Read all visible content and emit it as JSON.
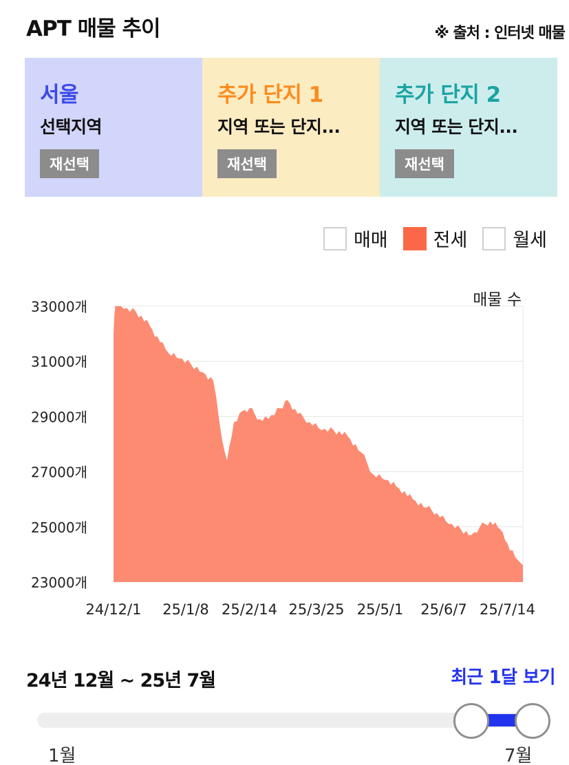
{
  "header": {
    "title": "APT 매물 추이",
    "source": "※ 출처 : 인터넷 매물"
  },
  "panels": [
    {
      "name": "서울",
      "sub": "선택지역",
      "button": "재선택",
      "bg": "#d2d6fb",
      "color": "#3b49ea"
    },
    {
      "name": "추가 단지 1",
      "sub": "지역 또는 단지...",
      "button": "재선택",
      "bg": "#fcecc2",
      "color": "#fc8b1c"
    },
    {
      "name": "추가 단지 2",
      "sub": "지역 또는 단지...",
      "button": "재선택",
      "bg": "#cdeded",
      "color": "#1aa3a3"
    }
  ],
  "legend": [
    {
      "label": "매매",
      "checked": false
    },
    {
      "label": "전세",
      "checked": true
    },
    {
      "label": "월세",
      "checked": false
    }
  ],
  "chart_data": {
    "type": "area",
    "series": [
      {
        "name": "전세",
        "color": "#fc8b72"
      }
    ],
    "ylabel": "매물 수",
    "ylim": [
      23000,
      33000
    ],
    "yticks": [
      {
        "value": 23000,
        "label": "23000개"
      },
      {
        "value": 25000,
        "label": "25000개"
      },
      {
        "value": 27000,
        "label": "27000개"
      },
      {
        "value": 29000,
        "label": "29000개"
      },
      {
        "value": 31000,
        "label": "31000개"
      },
      {
        "value": 33000,
        "label": "33000개"
      }
    ],
    "xticks": [
      "24/12/1",
      "25/1/8",
      "25/2/14",
      "25/3/25",
      "25/5/1",
      "25/6/7",
      "25/7/14"
    ],
    "anchors": [
      [
        "24/12/1",
        32000
      ],
      [
        "24/12/2",
        33150
      ],
      [
        "24/12/7",
        32900
      ],
      [
        "24/12/14",
        32800
      ],
      [
        "24/12/22",
        32300
      ],
      [
        "24/12/28",
        31700
      ],
      [
        "25/1/2",
        31300
      ],
      [
        "25/1/8",
        31100
      ],
      [
        "25/1/15",
        30900
      ],
      [
        "25/1/22",
        30600
      ],
      [
        "25/1/28",
        30300
      ],
      [
        "25/2/2",
        28200
      ],
      [
        "25/2/5",
        27400
      ],
      [
        "25/2/9",
        28800
      ],
      [
        "25/2/14",
        29200
      ],
      [
        "25/2/18",
        29300
      ],
      [
        "25/2/24",
        28900
      ],
      [
        "25/3/1",
        28900
      ],
      [
        "25/3/8",
        29300
      ],
      [
        "25/3/12",
        29600
      ],
      [
        "25/3/18",
        29100
      ],
      [
        "25/3/25",
        28800
      ],
      [
        "25/4/1",
        28500
      ],
      [
        "25/4/8",
        28500
      ],
      [
        "25/4/16",
        28300
      ],
      [
        "25/4/24",
        27700
      ],
      [
        "25/5/1",
        26900
      ],
      [
        "25/5/8",
        26700
      ],
      [
        "25/5/16",
        26400
      ],
      [
        "25/5/24",
        26000
      ],
      [
        "25/6/1",
        25700
      ],
      [
        "25/6/7",
        25500
      ],
      [
        "25/6/14",
        25100
      ],
      [
        "25/6/21",
        24900
      ],
      [
        "25/6/27",
        24700
      ],
      [
        "25/7/2",
        25000
      ],
      [
        "25/7/8",
        25200
      ],
      [
        "25/7/14",
        24900
      ],
      [
        "25/7/18",
        24400
      ],
      [
        "25/7/24",
        23800
      ],
      [
        "25/7/27",
        23600
      ]
    ]
  },
  "range": {
    "label": "24년 12월 ~ 25년 7월",
    "recent": "최근 1달 보기",
    "start": "1월",
    "end": "7월"
  }
}
